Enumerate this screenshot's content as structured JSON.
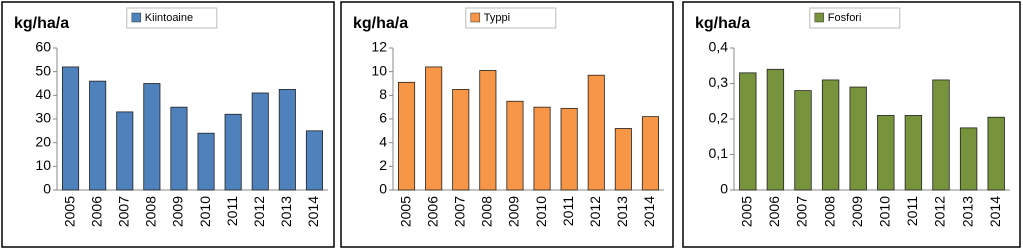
{
  "chart_data": [
    {
      "type": "bar",
      "ylabel": "kg/ha/a",
      "categories": [
        "2005",
        "2006",
        "2007",
        "2008",
        "2009",
        "2010",
        "2011",
        "2012",
        "2013",
        "2014"
      ],
      "series": [
        {
          "name": "Kiintoaine",
          "color": "#4f81bd",
          "values": [
            52,
            46,
            33,
            45,
            35,
            24,
            32,
            41,
            42.5,
            25
          ]
        }
      ],
      "ylim": [
        0,
        60
      ],
      "yticks": [
        0,
        10,
        20,
        30,
        40,
        50,
        60
      ]
    },
    {
      "type": "bar",
      "ylabel": "kg/ha/a",
      "categories": [
        "2005",
        "2006",
        "2007",
        "2008",
        "2009",
        "2010",
        "2011",
        "2012",
        "2013",
        "2014"
      ],
      "series": [
        {
          "name": "Typpi",
          "color": "#f79646",
          "values": [
            9.1,
            10.4,
            8.5,
            10.1,
            7.5,
            7.0,
            6.9,
            9.7,
            5.2,
            6.2
          ]
        }
      ],
      "ylim": [
        0,
        12
      ],
      "yticks": [
        0,
        2,
        4,
        6,
        8,
        10,
        12
      ]
    },
    {
      "type": "bar",
      "ylabel": "kg/ha/a",
      "categories": [
        "2005",
        "2006",
        "2007",
        "2008",
        "2009",
        "2010",
        "2011",
        "2012",
        "2013",
        "2014"
      ],
      "series": [
        {
          "name": "Fosfori",
          "color": "#77933c",
          "values": [
            0.33,
            0.34,
            0.28,
            0.31,
            0.29,
            0.21,
            0.21,
            0.31,
            0.175,
            0.205
          ]
        }
      ],
      "ylim": [
        0,
        0.4
      ],
      "yticks": [
        0,
        {
          "value": 0.1,
          "label": "0,1"
        },
        {
          "value": 0.2,
          "label": "0,2"
        },
        {
          "value": 0.3,
          "label": "0,3"
        },
        {
          "value": 0.4,
          "label": "0,4"
        }
      ]
    }
  ]
}
